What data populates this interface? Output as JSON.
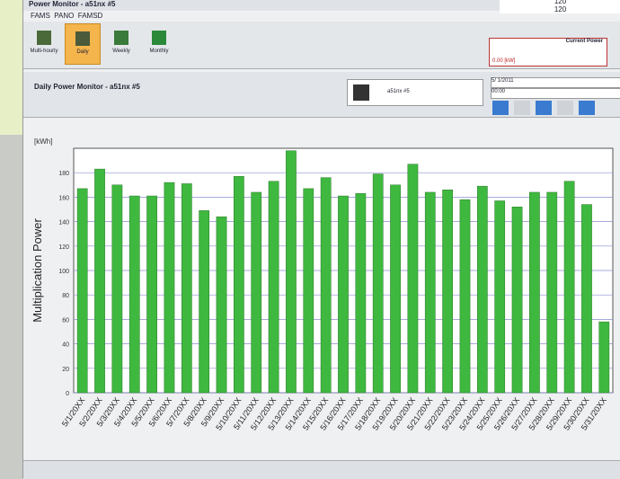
{
  "window": {
    "title": "Power Monitor - a51nx #5",
    "menus": [
      "FAMS",
      "PANO",
      "FAMSD"
    ],
    "tabs": [
      "Multi-hourly",
      "Daily",
      "Weekly",
      "Monthly"
    ],
    "current_power_label": "Current Power",
    "current_power_value": "0.00 [kW]",
    "corner_text": [
      "120",
      "120"
    ],
    "header": "Daily Power Monitor - a51nx #5",
    "device": "a51nx #5",
    "date": "5/ 1/2011",
    "time": "00:00"
  },
  "chart_data": {
    "type": "bar",
    "y_label": "Multiplication Power",
    "y_unit": "[kWh]",
    "color": "#3fb83f",
    "categories": [
      "5/1/20XX",
      "5/2/20XX",
      "5/3/20XX",
      "5/4/20XX",
      "5/5/20XX",
      "5/6/20XX",
      "5/7/20XX",
      "5/8/20XX",
      "5/9/20XX",
      "5/10/20XX",
      "5/11/20XX",
      "5/12/20XX",
      "5/13/20XX",
      "5/14/20XX",
      "5/15/20XX",
      "5/16/20XX",
      "5/17/20XX",
      "5/18/20XX",
      "5/19/20XX",
      "5/20/20XX",
      "5/21/20XX",
      "5/22/20XX",
      "5/23/20XX",
      "5/24/20XX",
      "5/25/20XX",
      "5/26/20XX",
      "5/27/20XX",
      "5/28/20XX",
      "5/29/20XX",
      "5/30/20XX",
      "5/31/20XX"
    ],
    "values": [
      167,
      183,
      170,
      161,
      161,
      172,
      171,
      149,
      144,
      177,
      164,
      173,
      198,
      167,
      176,
      161,
      163,
      179,
      170,
      187,
      164,
      166,
      158,
      169,
      157,
      152,
      164,
      164,
      173,
      154,
      58
    ],
    "ylim": [
      0,
      200
    ],
    "yticks": [
      0,
      20,
      40,
      60,
      80,
      100,
      120,
      140,
      160,
      180
    ],
    "grid": true
  }
}
